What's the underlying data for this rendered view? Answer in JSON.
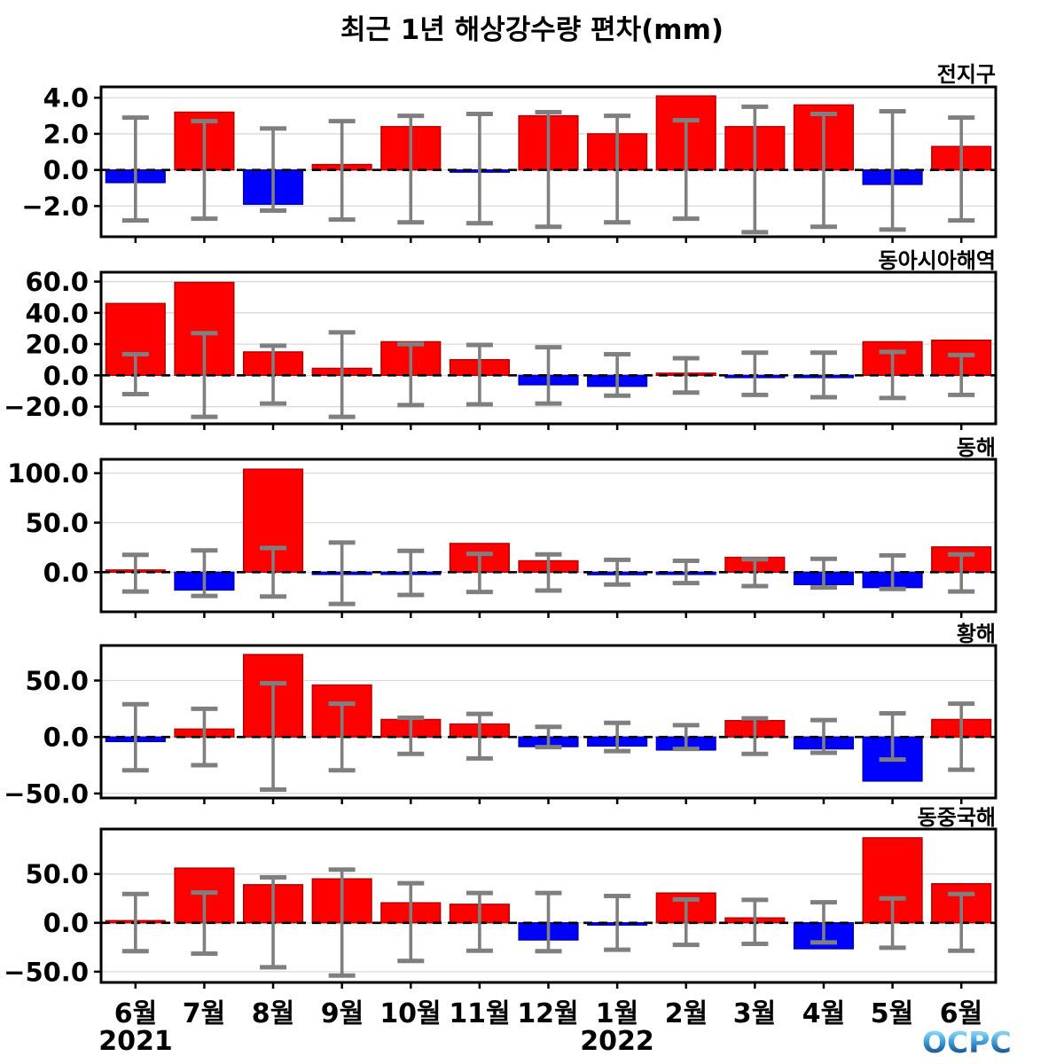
{
  "title": "최근 1년 해상강수량 편차(mm)",
  "logo": {
    "text": "OCPC"
  },
  "colors": {
    "positive_bar": "#ff0000",
    "positive_edge": "#b00000",
    "negative_bar": "#0000ff",
    "negative_edge": "#0000b0",
    "error_bar": "#7f7f7f",
    "gridline": "#d8d8d8",
    "zero_line": "#000000",
    "axis": "#000000"
  },
  "chart_data": {
    "type": "bar",
    "title": "최근 1년 해상강수량 편차(mm)",
    "ylabel": "",
    "xlabel": "",
    "grid": true,
    "error_bars": true,
    "categories": [
      "6월",
      "7월",
      "8월",
      "9월",
      "10월",
      "11월",
      "12월",
      "1월",
      "2월",
      "3월",
      "4월",
      "5월",
      "6월"
    ],
    "year_labels": [
      {
        "label": "2021",
        "slot_index": 0
      },
      {
        "label": "2022",
        "slot_index": 7
      }
    ],
    "panels": [
      {
        "title": "전지구",
        "values": [
          -0.7,
          3.2,
          -1.9,
          0.3,
          2.4,
          -0.1,
          3.0,
          2.0,
          4.1,
          2.4,
          3.6,
          -0.8,
          1.3
        ],
        "error_high": [
          2.9,
          2.7,
          2.3,
          2.7,
          3.0,
          3.1,
          3.2,
          3.0,
          2.75,
          3.5,
          3.1,
          3.25,
          2.9
        ],
        "error_low": [
          -2.8,
          -2.7,
          -2.25,
          -2.75,
          -2.9,
          -2.95,
          -3.15,
          -2.9,
          -2.7,
          -3.45,
          -3.15,
          -3.3,
          -2.8
        ],
        "yticks": [
          4.0,
          2.0,
          0.0,
          -2.0
        ],
        "ylim": [
          -3.7,
          4.6
        ]
      },
      {
        "title": "동아시아해역",
        "values": [
          46,
          59.5,
          15,
          4.5,
          21.5,
          10,
          -6,
          -7,
          1,
          -0.4,
          -0.3,
          21.5,
          22.5
        ],
        "error_high": [
          13.5,
          27,
          19,
          27.5,
          20,
          19.5,
          18,
          13.5,
          11,
          14.5,
          14.5,
          15,
          13
        ],
        "error_low": [
          -12,
          -26.5,
          -18,
          -26.5,
          -19,
          -18.5,
          -18,
          -13,
          -11,
          -12.5,
          -14,
          -14.5,
          -12.5
        ],
        "yticks": [
          60.0,
          40.0,
          20.0,
          0.0,
          -20.0
        ],
        "ylim": [
          -31,
          66
        ]
      },
      {
        "title": "동해",
        "values": [
          2,
          -18,
          104,
          -1.5,
          -1.5,
          29,
          11.5,
          -2.5,
          -2,
          15,
          -12.5,
          -15.5,
          25.5
        ],
        "error_high": [
          17.5,
          22,
          24.5,
          30,
          21.5,
          18.5,
          18,
          12.5,
          11.5,
          13,
          13.5,
          17,
          18
        ],
        "error_low": [
          -19.5,
          -24,
          -24.5,
          -32,
          -23,
          -20,
          -18.5,
          -12.5,
          -11,
          -14,
          -15.5,
          -17,
          -19.5
        ],
        "yticks": [
          100.0,
          50.0,
          0.0
        ],
        "ylim": [
          -40,
          114
        ]
      },
      {
        "title": "황해",
        "values": [
          -4,
          7,
          73,
          46,
          15.5,
          11.5,
          -8.5,
          -8,
          -11.5,
          14.5,
          -10.5,
          -39,
          15.5
        ],
        "error_high": [
          29,
          25,
          47.5,
          29.5,
          17,
          20.5,
          9,
          12.5,
          10.5,
          16.5,
          15,
          21,
          29.5
        ],
        "error_low": [
          -29.5,
          -25,
          -46.5,
          -29.5,
          -15,
          -19,
          -9,
          -12.5,
          -10.5,
          -15,
          -14,
          -20,
          -29
        ],
        "yticks": [
          50.0,
          0.0,
          -50.0
        ],
        "ylim": [
          -54,
          81
        ]
      },
      {
        "title": "동중국해",
        "values": [
          1,
          56,
          39,
          45,
          20.5,
          19,
          -17.5,
          -2,
          30.5,
          5,
          -26.5,
          87,
          40
        ],
        "error_high": [
          29.5,
          31,
          46.5,
          54.5,
          40.5,
          30.5,
          30.5,
          27.5,
          24,
          23.5,
          21,
          25,
          29.5
        ],
        "error_low": [
          -29,
          -31.5,
          -45.5,
          -54,
          -39,
          -28.5,
          -29,
          -27.5,
          -22.5,
          -21.5,
          -20,
          -25.5,
          -28.5
        ],
        "yticks": [
          50.0,
          0.0,
          -50.0
        ],
        "ylim": [
          -61,
          96
        ]
      }
    ]
  }
}
